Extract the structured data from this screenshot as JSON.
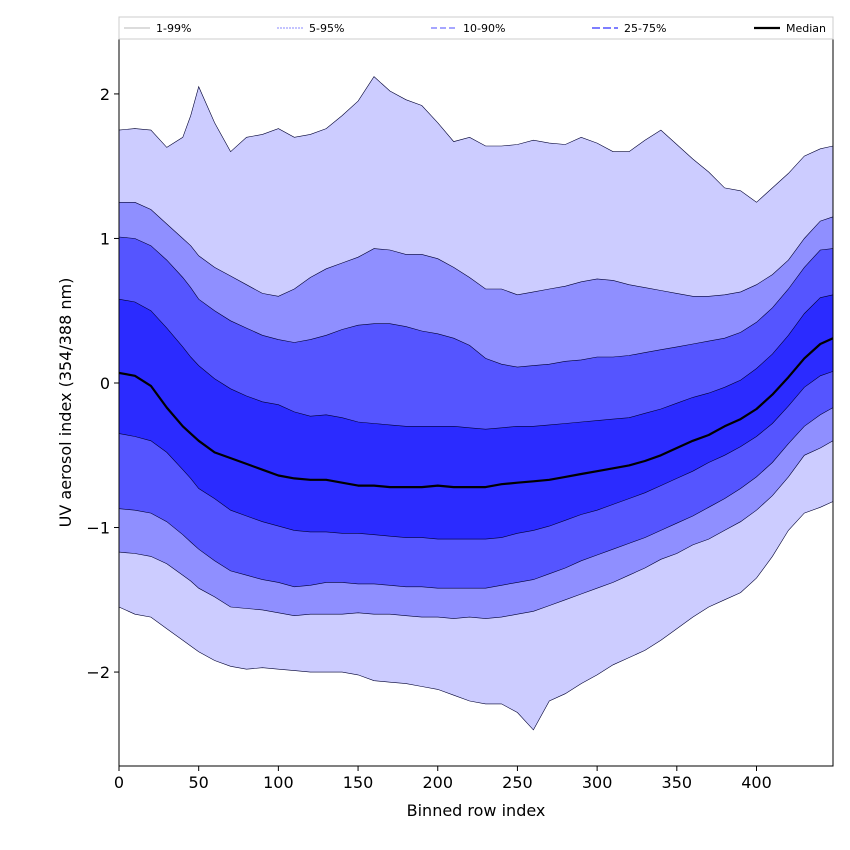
{
  "chart_data": {
    "type": "area",
    "xlabel": "Binned row index",
    "ylabel": "UV aerosol index (354/388 nm)",
    "xlim": [
      0,
      448
    ],
    "ylim": [
      -2.65,
      2.38
    ],
    "xticks": [
      0,
      50,
      100,
      150,
      200,
      250,
      300,
      350,
      400
    ],
    "yticks": [
      -2,
      -1,
      0,
      1,
      2
    ],
    "ytick_labels": [
      "−2",
      "−1",
      "0",
      "1",
      "2"
    ],
    "grid": false,
    "legend_position": "top",
    "x": [
      0,
      10,
      20,
      30,
      40,
      45,
      50,
      60,
      70,
      80,
      90,
      100,
      110,
      120,
      130,
      140,
      150,
      160,
      170,
      180,
      190,
      200,
      210,
      220,
      230,
      240,
      250,
      260,
      270,
      280,
      290,
      300,
      310,
      320,
      330,
      340,
      350,
      360,
      370,
      380,
      390,
      400,
      410,
      420,
      430,
      440,
      448
    ],
    "bands": [
      {
        "name": "1-99%",
        "color": "#ccccff",
        "line_color": "#c8c8c8",
        "dash": "",
        "upper": [
          1.75,
          1.76,
          1.75,
          1.63,
          1.7,
          1.85,
          2.05,
          1.8,
          1.6,
          1.7,
          1.72,
          1.76,
          1.7,
          1.72,
          1.76,
          1.85,
          1.95,
          2.12,
          2.02,
          1.96,
          1.92,
          1.8,
          1.67,
          1.7,
          1.64,
          1.64,
          1.65,
          1.68,
          1.66,
          1.65,
          1.7,
          1.66,
          1.6,
          1.6,
          1.68,
          1.75,
          1.65,
          1.55,
          1.46,
          1.35,
          1.33,
          1.25,
          1.35,
          1.45,
          1.57,
          1.62,
          1.64
        ],
        "lower": [
          -1.55,
          -1.6,
          -1.62,
          -1.7,
          -1.78,
          -1.82,
          -1.86,
          -1.92,
          -1.96,
          -1.98,
          -1.97,
          -1.98,
          -1.99,
          -2.0,
          -2.0,
          -2.0,
          -2.02,
          -2.06,
          -2.07,
          -2.08,
          -2.1,
          -2.12,
          -2.16,
          -2.2,
          -2.22,
          -2.22,
          -2.28,
          -2.4,
          -2.2,
          -2.15,
          -2.08,
          -2.02,
          -1.95,
          -1.9,
          -1.85,
          -1.78,
          -1.7,
          -1.62,
          -1.55,
          -1.5,
          -1.45,
          -1.35,
          -1.2,
          -1.02,
          -0.9,
          -0.86,
          -0.82
        ]
      },
      {
        "name": "5-95%",
        "color": "#8f8fff",
        "line_color": "#a0a0ff",
        "dash": "2,1",
        "upper": [
          1.25,
          1.25,
          1.2,
          1.1,
          1.0,
          0.95,
          0.88,
          0.8,
          0.74,
          0.68,
          0.62,
          0.6,
          0.65,
          0.73,
          0.79,
          0.83,
          0.87,
          0.93,
          0.92,
          0.89,
          0.89,
          0.86,
          0.8,
          0.73,
          0.65,
          0.65,
          0.61,
          0.63,
          0.65,
          0.67,
          0.7,
          0.72,
          0.71,
          0.68,
          0.66,
          0.64,
          0.62,
          0.6,
          0.6,
          0.61,
          0.63,
          0.68,
          0.75,
          0.85,
          1.0,
          1.12,
          1.15
        ],
        "lower": [
          -1.17,
          -1.18,
          -1.2,
          -1.25,
          -1.33,
          -1.37,
          -1.42,
          -1.48,
          -1.55,
          -1.56,
          -1.57,
          -1.59,
          -1.61,
          -1.6,
          -1.6,
          -1.6,
          -1.59,
          -1.6,
          -1.6,
          -1.61,
          -1.62,
          -1.62,
          -1.63,
          -1.62,
          -1.63,
          -1.62,
          -1.6,
          -1.58,
          -1.54,
          -1.5,
          -1.46,
          -1.42,
          -1.38,
          -1.33,
          -1.28,
          -1.22,
          -1.18,
          -1.12,
          -1.08,
          -1.02,
          -0.96,
          -0.88,
          -0.78,
          -0.65,
          -0.5,
          -0.45,
          -0.4
        ]
      },
      {
        "name": "10-90%",
        "color": "#5555ff",
        "line_color": "#7070ff",
        "dash": "6,3",
        "upper": [
          1.01,
          1.0,
          0.95,
          0.85,
          0.73,
          0.66,
          0.58,
          0.5,
          0.43,
          0.38,
          0.33,
          0.3,
          0.28,
          0.3,
          0.33,
          0.37,
          0.4,
          0.41,
          0.41,
          0.39,
          0.36,
          0.34,
          0.31,
          0.26,
          0.17,
          0.13,
          0.11,
          0.12,
          0.13,
          0.15,
          0.16,
          0.18,
          0.18,
          0.19,
          0.21,
          0.23,
          0.25,
          0.27,
          0.29,
          0.31,
          0.35,
          0.42,
          0.52,
          0.65,
          0.8,
          0.92,
          0.93
        ],
        "lower": [
          -0.87,
          -0.88,
          -0.9,
          -0.96,
          -1.05,
          -1.1,
          -1.15,
          -1.23,
          -1.3,
          -1.33,
          -1.36,
          -1.38,
          -1.41,
          -1.4,
          -1.38,
          -1.38,
          -1.39,
          -1.39,
          -1.4,
          -1.41,
          -1.41,
          -1.42,
          -1.42,
          -1.42,
          -1.42,
          -1.4,
          -1.38,
          -1.36,
          -1.32,
          -1.28,
          -1.23,
          -1.19,
          -1.15,
          -1.11,
          -1.07,
          -1.02,
          -0.97,
          -0.92,
          -0.86,
          -0.8,
          -0.73,
          -0.65,
          -0.55,
          -0.42,
          -0.3,
          -0.22,
          -0.17
        ]
      },
      {
        "name": "25-75%",
        "color": "#2b2bff",
        "line_color": "#3030ff",
        "dash": "8,3",
        "upper": [
          0.58,
          0.56,
          0.5,
          0.38,
          0.25,
          0.18,
          0.12,
          0.03,
          -0.04,
          -0.09,
          -0.13,
          -0.15,
          -0.2,
          -0.23,
          -0.22,
          -0.24,
          -0.27,
          -0.28,
          -0.29,
          -0.3,
          -0.3,
          -0.3,
          -0.3,
          -0.31,
          -0.32,
          -0.31,
          -0.3,
          -0.3,
          -0.29,
          -0.28,
          -0.27,
          -0.26,
          -0.25,
          -0.24,
          -0.21,
          -0.18,
          -0.14,
          -0.1,
          -0.07,
          -0.03,
          0.02,
          0.1,
          0.2,
          0.33,
          0.48,
          0.59,
          0.61
        ],
        "lower": [
          -0.35,
          -0.37,
          -0.4,
          -0.48,
          -0.6,
          -0.66,
          -0.73,
          -0.8,
          -0.88,
          -0.92,
          -0.96,
          -0.99,
          -1.02,
          -1.03,
          -1.03,
          -1.04,
          -1.04,
          -1.05,
          -1.06,
          -1.07,
          -1.07,
          -1.08,
          -1.08,
          -1.08,
          -1.08,
          -1.07,
          -1.04,
          -1.02,
          -0.99,
          -0.95,
          -0.91,
          -0.88,
          -0.84,
          -0.8,
          -0.76,
          -0.71,
          -0.66,
          -0.61,
          -0.55,
          -0.5,
          -0.44,
          -0.37,
          -0.28,
          -0.16,
          -0.03,
          0.05,
          0.08
        ]
      }
    ],
    "median": {
      "name": "Median",
      "color": "#000000",
      "values": [
        0.07,
        0.05,
        -0.02,
        -0.17,
        -0.3,
        -0.35,
        -0.4,
        -0.48,
        -0.52,
        -0.56,
        -0.6,
        -0.64,
        -0.66,
        -0.67,
        -0.67,
        -0.69,
        -0.71,
        -0.71,
        -0.72,
        -0.72,
        -0.72,
        -0.71,
        -0.72,
        -0.72,
        -0.72,
        -0.7,
        -0.69,
        -0.68,
        -0.67,
        -0.65,
        -0.63,
        -0.61,
        -0.59,
        -0.57,
        -0.54,
        -0.5,
        -0.45,
        -0.4,
        -0.36,
        -0.3,
        -0.25,
        -0.18,
        -0.08,
        0.04,
        0.17,
        0.27,
        0.31
      ]
    }
  }
}
